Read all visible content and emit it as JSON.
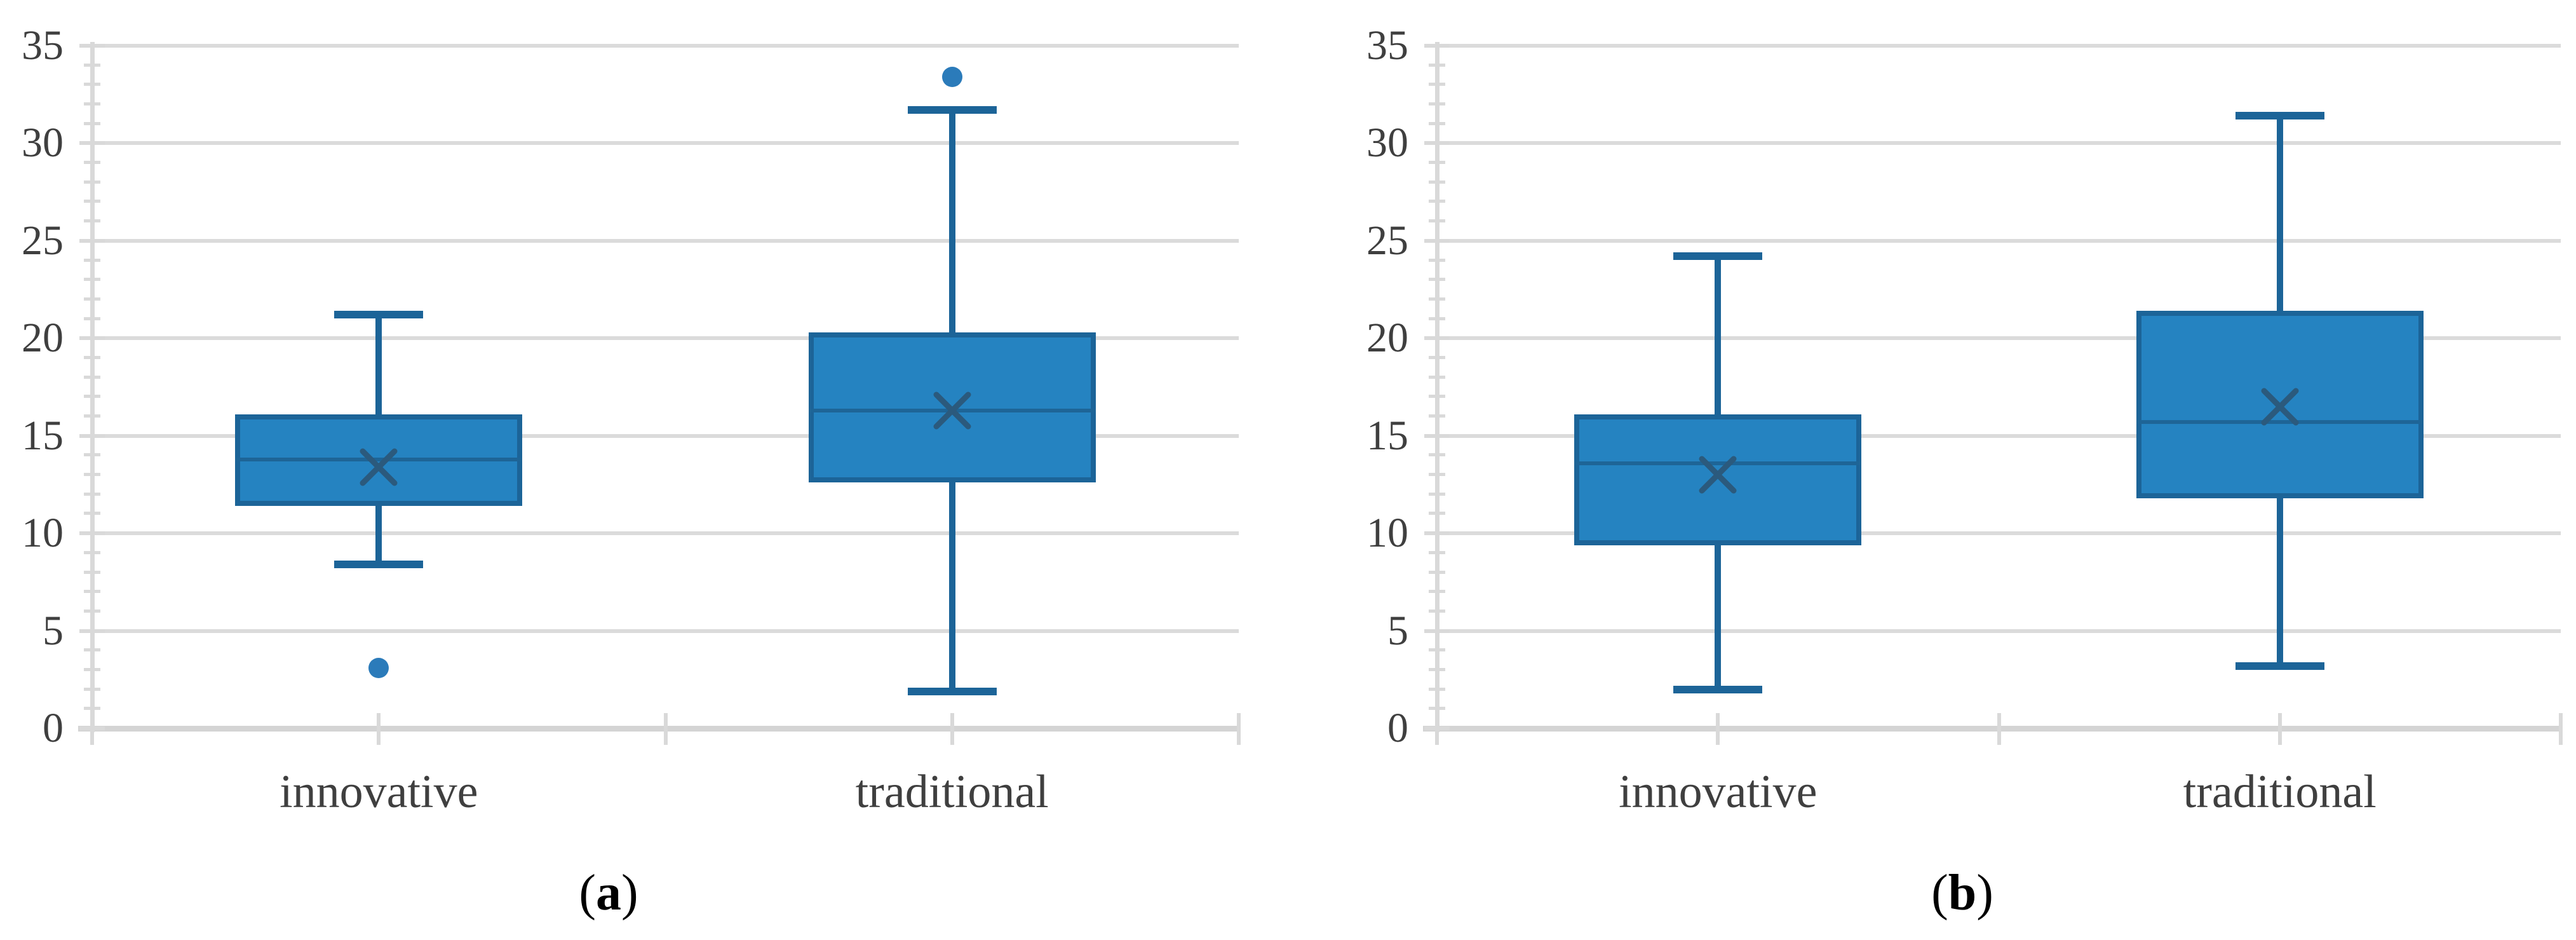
{
  "figure": {
    "description": "Two side-by-side box-and-whisker plots comparing innovative vs traditional groups",
    "panel_captions": [
      "(a)",
      "(b)"
    ]
  },
  "chart_data": [
    {
      "type": "box",
      "caption": {
        "open": "(",
        "letter": "a",
        "close": ")"
      },
      "categories": [
        "innovative",
        "traditional"
      ],
      "y_axis": {
        "min": 0,
        "max": 35,
        "major_step": 5,
        "minor_step": 1,
        "tick_labels": [
          "0",
          "5",
          "10",
          "15",
          "20",
          "25",
          "30",
          "35"
        ],
        "gridlines": true
      },
      "legend": "none",
      "series": [
        {
          "name": "innovative",
          "whisker_low": 8.4,
          "q1": 11.4,
          "median": 13.8,
          "mean": 13.4,
          "q3": 16.1,
          "whisker_high": 21.2,
          "outliers": [
            3.1
          ]
        },
        {
          "name": "traditional",
          "whisker_low": 1.9,
          "q1": 12.6,
          "median": 16.3,
          "mean": 16.3,
          "q3": 20.3,
          "whisker_high": 31.7,
          "outliers": [
            33.4
          ]
        }
      ]
    },
    {
      "type": "box",
      "caption": {
        "open": "(",
        "letter": "b",
        "close": ")"
      },
      "categories": [
        "innovative",
        "traditional"
      ],
      "y_axis": {
        "min": 0,
        "max": 35,
        "major_step": 5,
        "minor_step": 1,
        "tick_labels": [
          "0",
          "5",
          "10",
          "15",
          "20",
          "25",
          "30",
          "35"
        ],
        "gridlines": true
      },
      "legend": "none",
      "series": [
        {
          "name": "innovative",
          "whisker_low": 2.0,
          "q1": 9.4,
          "median": 13.6,
          "mean": 13.0,
          "q3": 16.1,
          "whisker_high": 24.2,
          "outliers": []
        },
        {
          "name": "traditional",
          "whisker_low": 3.2,
          "q1": 11.8,
          "median": 15.7,
          "mean": 16.5,
          "q3": 21.4,
          "whisker_high": 31.4,
          "outliers": []
        }
      ]
    }
  ],
  "colors": {
    "box_fill": "#2583C1",
    "box_border": "#1C6498",
    "whisker": "#1C6498",
    "median": "#1E6597",
    "mean_marker": "#2B5A7D",
    "outlier": "#2B7BBA",
    "gridline": "#DBDBDB",
    "axis_line": "#D4D4D4",
    "tick": "#D9D9D9",
    "text": "#3F3F3F",
    "caption": "#000000"
  }
}
